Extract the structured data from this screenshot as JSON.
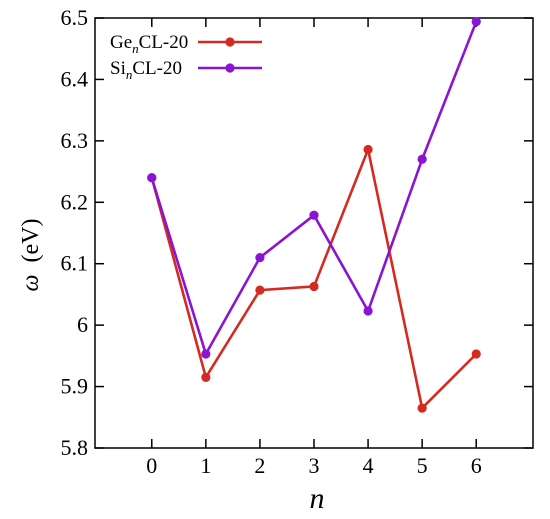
{
  "chart_data": {
    "type": "line",
    "x": [
      0,
      1,
      2,
      3,
      4,
      5,
      6
    ],
    "xlabel": "n",
    "ylabel_symbol": "ω",
    "ylabel_unit": "(eV)",
    "xlim": [
      -1.05,
      7.05
    ],
    "ylim": [
      5.8,
      6.5
    ],
    "xticks": [
      0,
      1,
      2,
      3,
      4,
      5,
      6
    ],
    "yticks": [
      5.8,
      5.9,
      6,
      6.1,
      6.2,
      6.3,
      6.4,
      6.5
    ],
    "ytick_labels": [
      "5.8",
      "5.9",
      "6",
      "6.1",
      "6.2",
      "6.3",
      "6.4",
      "6.5"
    ],
    "grid": false,
    "legend_position": "top-left",
    "series": [
      {
        "name_base": "Ge",
        "name_sub": "n",
        "name_rest": "CL-20",
        "color": "#d42a22",
        "values": [
          6.24,
          5.915,
          6.057,
          6.063,
          6.286,
          5.865,
          5.953
        ]
      },
      {
        "name_base": "Si",
        "name_sub": "n",
        "name_rest": "CL-20",
        "color": "#8b14d2",
        "values": [
          6.24,
          5.953,
          6.11,
          6.179,
          6.023,
          6.27,
          6.494
        ]
      }
    ]
  }
}
